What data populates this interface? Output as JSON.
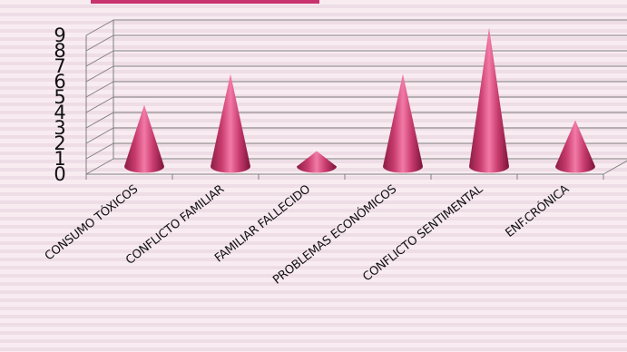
{
  "chart_data": {
    "type": "bar",
    "style": "3d-cone",
    "title": "",
    "xlabel": "",
    "ylabel": "",
    "categories": [
      "CONSUMO TÓXICOS",
      "CONFLICTO FAMILIAR",
      "FAMILIAR FALLECIDO",
      "PROBLEMAS ECONÓMICOS",
      "CONFLICTO SENTIMENTAL",
      "ENF.CRÓNICA"
    ],
    "values": [
      4,
      6,
      1,
      6,
      9,
      3
    ],
    "ylim": [
      0,
      9
    ],
    "yticks": [
      "0",
      "1",
      "2",
      "3",
      "4",
      "5",
      "6",
      "7",
      "8",
      "9"
    ],
    "grid": true,
    "legend": "none",
    "color": "#c83c6e",
    "header_bar_color": "#c8326e"
  }
}
